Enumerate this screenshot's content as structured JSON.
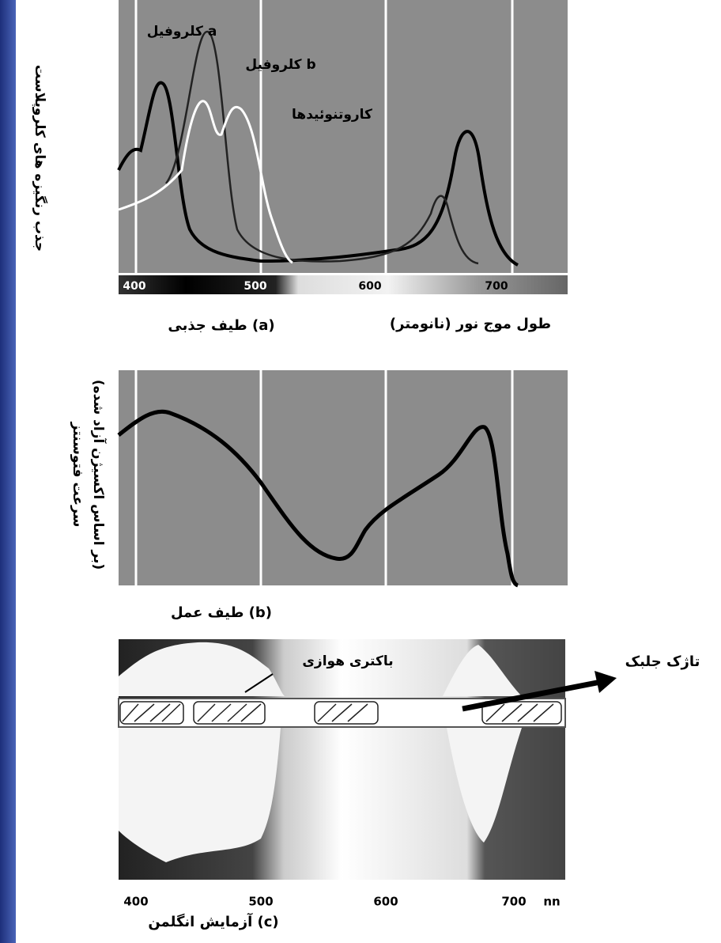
{
  "panel_a": {
    "curve_labels": [
      "کلروفیل a",
      "کلروفیل b",
      "کاروتنوئیدها"
    ],
    "axis_ticks": [
      "400",
      "500",
      "600",
      "700"
    ],
    "caption": "طیف جذبی (a)",
    "x_label": "طول موج نور (نانومتر)",
    "y_label": "جذب رنگیزه های کلروپلاست"
  },
  "panel_b": {
    "caption": "طیف عمل (b)",
    "y_label_line1": "سرعت فتوسنتز",
    "y_label_line2": "(بر اساس اکسیژن آزاد شده)"
  },
  "panel_c": {
    "bacteria_label": "باکتری هوازی",
    "filament_label": "تاژک جلبک",
    "axis_ticks": [
      "400",
      "500",
      "600",
      "700"
    ],
    "unit": "nn",
    "caption": "آزمایش انگلمن (c)"
  }
}
